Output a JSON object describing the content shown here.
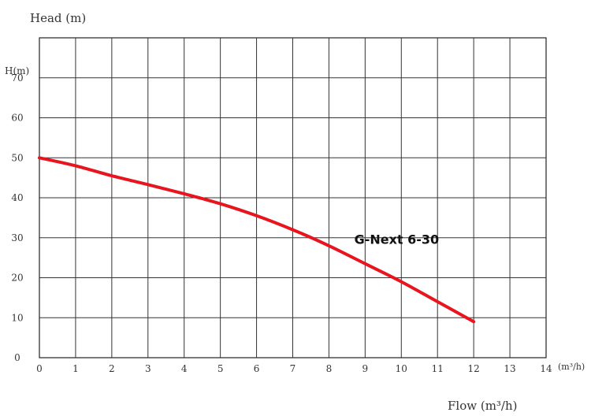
{
  "chart_data": {
    "type": "line",
    "title": "Head (m)",
    "ylabel": "H(m)",
    "xlabel": "Flow (m³/h)",
    "x_unit_label": "(m³/h)",
    "xlim": [
      0,
      14
    ],
    "ylim": [
      0,
      80
    ],
    "x_ticks": [
      "0",
      "1",
      "2",
      "3",
      "4",
      "5",
      "6",
      "7",
      "8",
      "9",
      "10",
      "11",
      "12",
      "13",
      "14"
    ],
    "y_ticks": [
      "0",
      "10",
      "20",
      "30",
      "40",
      "50",
      "60",
      "70"
    ],
    "grid": true,
    "series": [
      {
        "name": "G-Next 6-30",
        "color": "#e8141e",
        "x": [
          0,
          1,
          2,
          3,
          4,
          5,
          6,
          7,
          8,
          9,
          10,
          11,
          12
        ],
        "y": [
          50,
          48,
          45.5,
          43.3,
          41,
          38.5,
          35.5,
          32,
          28,
          23.5,
          19,
          14,
          9
        ]
      }
    ]
  }
}
